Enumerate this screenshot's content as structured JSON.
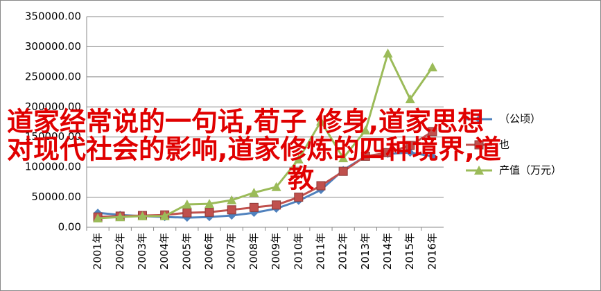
{
  "chart_data": {
    "type": "line",
    "categories": [
      "2001年",
      "2002年",
      "2003年",
      "2004年",
      "2005年",
      "2006年",
      "2007年",
      "2008年",
      "2009年",
      "2010年",
      "2011年",
      "2012年",
      "2013年",
      "2014年",
      "2015年",
      "2016年"
    ],
    "series": [
      {
        "name": "（公顷）",
        "color": "#4f81bd",
        "marker": "diamond",
        "values": [
          24000,
          20500,
          18500,
          17000,
          16000,
          17000,
          19500,
          24000,
          31000,
          44000,
          62000,
          95000,
          118000,
          122000,
          124000,
          118000
        ]
      },
      {
        "name": "也",
        "color": "#c0504d",
        "marker": "square",
        "values": [
          17000,
          18500,
          19500,
          20500,
          24000,
          25000,
          29000,
          33000,
          37000,
          50000,
          69000,
          93000,
          118000,
          124000,
          136000,
          159000
        ]
      },
      {
        "name": "产值（万元）",
        "color": "#9bbb59",
        "marker": "triangle",
        "values": [
          15000,
          17000,
          18500,
          18500,
          38000,
          39000,
          45000,
          57500,
          67000,
          113000,
          176000,
          115000,
          161000,
          289000,
          213000,
          266000
        ]
      }
    ],
    "ylim": [
      0,
      350000
    ],
    "yticks": [
      {
        "value": 0,
        "label": "0.00"
      },
      {
        "value": 50000,
        "label": "50000.00"
      },
      {
        "value": 100000,
        "label": "100000.00"
      },
      {
        "value": 150000,
        "label": "150000.00"
      },
      {
        "value": 200000,
        "label": "200000.00"
      },
      {
        "value": 250000,
        "label": "250000.00"
      },
      {
        "value": 300000,
        "label": "300000.00"
      },
      {
        "value": 350000,
        "label": "350000.00"
      }
    ],
    "grid": true,
    "legend": "right",
    "annotation_lines": [
      "道家经常说的一句话,荀子 修身,道家思想",
      "对现代社会的影响,道家修炼的四种境界,道",
      "教"
    ]
  }
}
